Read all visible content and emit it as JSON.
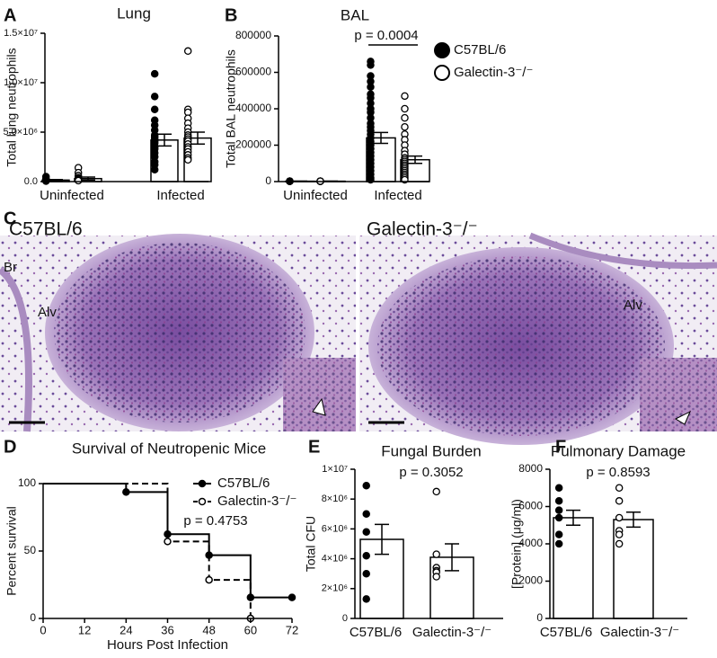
{
  "chart_data": [
    {
      "panel": "A",
      "type": "bar",
      "title": "Lung",
      "ylabel": "Total lung neutrophils",
      "categories": [
        "Uninfected",
        "Infected"
      ],
      "ylim": [
        0,
        15000000
      ],
      "yticks": [
        {
          "value": 0,
          "label": "0.0"
        },
        {
          "value": 5000000,
          "label": "5.0×10⁶"
        },
        {
          "value": 10000000,
          "label": "1.0×10⁷"
        },
        {
          "value": 15000000,
          "label": "1.5×10⁷"
        }
      ],
      "series": [
        {
          "color": "#000000",
          "values": [
            150000,
            4200000
          ],
          "errors": [
            60000,
            600000
          ],
          "points": [
            [
              500000,
              300000,
              200000,
              100000,
              100000,
              50000,
              200000,
              100000
            ],
            [
              10900000,
              8600000,
              7300000,
              6200000,
              5700000,
              5200000,
              4700000,
              4500000,
              4300000,
              4100000,
              3900000,
              3500000,
              3300000,
              2900000,
              2500000,
              2000000,
              1700000,
              1200000
            ]
          ]
        },
        {
          "color": "#ffffff",
          "values": [
            300000,
            4400000
          ],
          "errors": [
            150000,
            600000
          ],
          "points": [
            [
              1400000,
              900000,
              600000,
              400000,
              300000,
              200000,
              100000,
              100000
            ],
            [
              13200000,
              7300000,
              7000000,
              6400000,
              5900000,
              5400000,
              5000000,
              4700000,
              4500000,
              4300000,
              4100000,
              3800000,
              3500000,
              3300000,
              3000000,
              2700000,
              2400000,
              2200000
            ]
          ]
        }
      ]
    },
    {
      "panel": "B",
      "type": "bar",
      "title": "BAL",
      "ylabel": "Total BAL neutrophils",
      "categories": [
        "Uninfected",
        "Infected"
      ],
      "ylim": [
        0,
        800000
      ],
      "yticks": [
        0,
        200000,
        400000,
        600000,
        800000
      ],
      "annotation": "p = 0.0004",
      "legend": "right",
      "series": [
        {
          "name": "C57BL/6",
          "color": "#000000",
          "values": [
            2000,
            240000
          ],
          "errors": [
            500,
            30000
          ],
          "points": [
            [
              2000,
              2000,
              2000,
              2000,
              2000,
              2000
            ],
            [
              660000,
              640000,
              580000,
              550000,
              520000,
              480000,
              460000,
              430000,
              400000,
              380000,
              350000,
              320000,
              300000,
              280000,
              260000,
              240000,
              220000,
              200000,
              180000,
              160000,
              140000,
              120000,
              100000,
              80000,
              60000,
              40000,
              20000,
              10000
            ]
          ]
        },
        {
          "name": "Galectin-3⁻/⁻",
          "color": "#ffffff",
          "values": [
            2000,
            120000
          ],
          "errors": [
            500,
            20000
          ],
          "points": [
            [
              2000,
              2000,
              2000,
              2000,
              2000,
              2000
            ],
            [
              470000,
              400000,
              350000,
              300000,
              260000,
              230000,
              200000,
              170000,
              150000,
              130000,
              120000,
              110000,
              100000,
              90000,
              80000,
              70000,
              60000,
              50000,
              40000,
              30000,
              20000,
              10000
            ]
          ]
        }
      ]
    },
    {
      "panel": "D",
      "type": "line",
      "step": true,
      "title": "Survival of Neutropenic Mice",
      "xlabel": "Hours Post Infection",
      "ylabel": "Percent survival",
      "xlim": [
        0,
        72
      ],
      "xticks": [
        0,
        12,
        24,
        36,
        48,
        60,
        72
      ],
      "ylim": [
        0,
        100
      ],
      "yticks": [
        0,
        50,
        100
      ],
      "annotation": "p = 0.4753",
      "series": [
        {
          "name": "C57BL/6",
          "color": "#000000",
          "marker_fill": "#000000",
          "dash": false,
          "x": [
            0,
            24,
            36,
            48,
            60,
            72
          ],
          "values": [
            100,
            93.75,
            62.5,
            46.9,
            15.6,
            15.6
          ]
        },
        {
          "name": "Galectin-3⁻/⁻",
          "color": "#000000",
          "marker_fill": "#ffffff",
          "dash": true,
          "x": [
            0,
            36,
            48,
            60
          ],
          "values": [
            100,
            57.1,
            28.6,
            0
          ]
        }
      ]
    },
    {
      "panel": "E",
      "type": "bar",
      "title": "Fungal Burden",
      "ylabel": "Total CFU",
      "categories": [
        "C57BL/6",
        "Galectin-3⁻/⁻"
      ],
      "ylim": [
        0,
        10000000
      ],
      "yticks": [
        0,
        {
          "value": 2000000,
          "label": "2×10⁶"
        },
        {
          "value": 4000000,
          "label": "4×10⁶"
        },
        {
          "value": 6000000,
          "label": "6×10⁶"
        },
        {
          "value": 8000000,
          "label": "8×10⁶"
        },
        {
          "value": 10000000,
          "label": "1×10⁷"
        }
      ],
      "annotation": "p = 0.3052",
      "values": [
        5300000,
        4100000
      ],
      "errors": [
        1000000,
        900000
      ],
      "point_colors": [
        "#000000",
        "#ffffff"
      ],
      "points": [
        [
          8900000,
          7000000,
          5800000,
          4200000,
          3000000,
          1300000
        ],
        [
          8500000,
          4300000,
          3400000,
          3200000,
          3100000,
          2800000
        ]
      ]
    },
    {
      "panel": "F",
      "type": "bar",
      "title": "Pulmonary Damage",
      "ylabel": "[Protein] (μg/ml)",
      "categories": [
        "C57BL/6",
        "Galectin-3⁻/⁻"
      ],
      "ylim": [
        0,
        8000
      ],
      "yticks": [
        0,
        2000,
        4000,
        6000,
        8000
      ],
      "annotation": "p = 0.8593",
      "values": [
        5400,
        5300
      ],
      "errors": [
        400,
        400
      ],
      "point_colors": [
        "#000000",
        "#ffffff"
      ],
      "points": [
        [
          7000,
          6300,
          5800,
          5400,
          4500,
          4000
        ],
        [
          7000,
          6300,
          5400,
          4700,
          4500,
          4000
        ]
      ]
    }
  ],
  "panel_c": {
    "letter": "C",
    "images": [
      {
        "title": "C57BL/6",
        "labels": [
          "Br",
          "Alv"
        ]
      },
      {
        "title": "Galectin-3⁻/⁻",
        "labels": [
          "Alv"
        ]
      }
    ]
  }
}
